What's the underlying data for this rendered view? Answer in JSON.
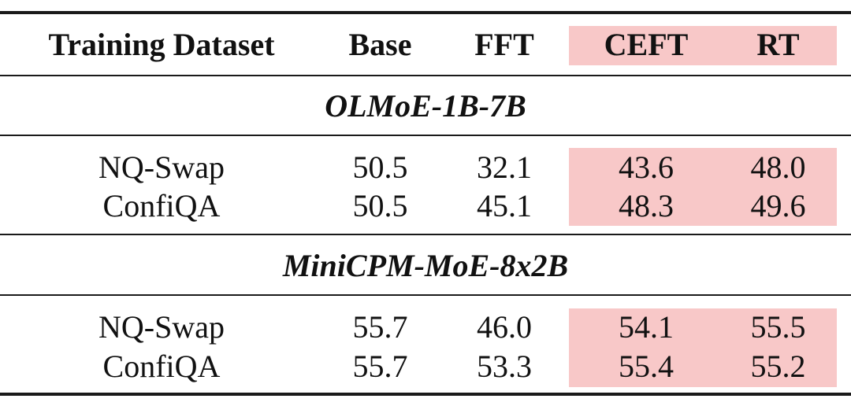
{
  "table": {
    "headers": [
      "Training Dataset",
      "Base",
      "FFT",
      "CEFT",
      "RT"
    ],
    "highlight_color": "#f8c8c8",
    "groups": [
      {
        "model": "OLMoE-1B-7B",
        "rows": [
          [
            "NQ-Swap",
            "50.5",
            "32.1",
            "43.6",
            "48.0"
          ],
          [
            "ConfiQA",
            "50.5",
            "45.1",
            "48.3",
            "49.6"
          ]
        ]
      },
      {
        "model": "MiniCPM-MoE-8x2B",
        "rows": [
          [
            "NQ-Swap",
            "55.7",
            "46.0",
            "54.1",
            "55.5"
          ],
          [
            "ConfiQA",
            "55.7",
            "53.3",
            "55.4",
            "55.2"
          ]
        ]
      }
    ]
  }
}
